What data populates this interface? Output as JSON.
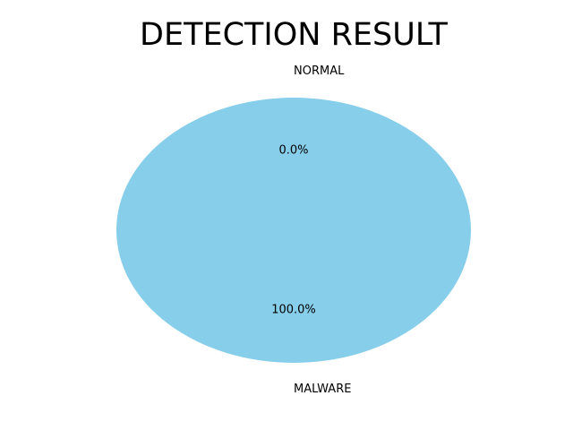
{
  "chart_data": {
    "type": "pie",
    "title": "DETECTION RESULT",
    "categories": [
      "NORMAL",
      "MALWARE"
    ],
    "values": [
      0.0,
      100.0
    ],
    "percent_labels": [
      "0.0%",
      "100.0%"
    ],
    "colors": [
      "#87ceeb",
      "#87ceeb"
    ],
    "start_angle_deg": 90,
    "legend": "none"
  }
}
